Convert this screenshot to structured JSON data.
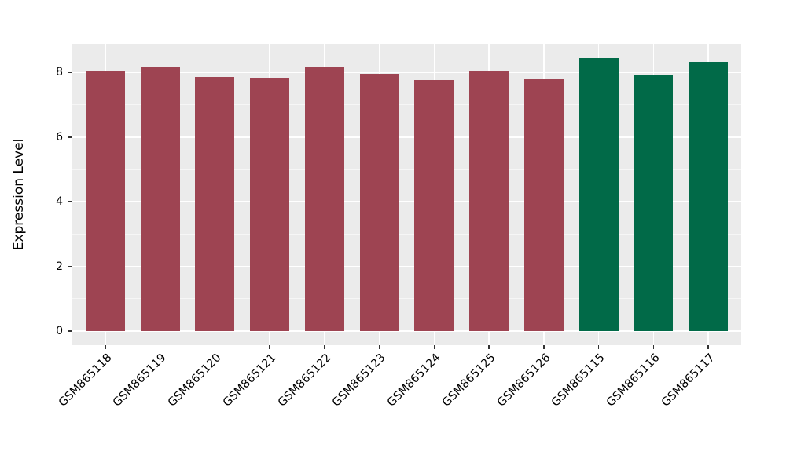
{
  "chart_data": {
    "type": "bar",
    "title": "",
    "xlabel": "",
    "ylabel": "Expression Level",
    "categories": [
      "GSM865118",
      "GSM865119",
      "GSM865120",
      "GSM865121",
      "GSM865122",
      "GSM865123",
      "GSM865124",
      "GSM865125",
      "GSM865126",
      "GSM865115",
      "GSM865116",
      "GSM865117"
    ],
    "values": [
      8.06,
      8.17,
      7.86,
      7.84,
      8.19,
      7.97,
      7.77,
      8.06,
      7.79,
      8.45,
      7.93,
      8.33
    ],
    "bar_colors": [
      "#9E4452",
      "#9E4452",
      "#9E4452",
      "#9E4452",
      "#9E4452",
      "#9E4452",
      "#9E4452",
      "#9E4452",
      "#9E4452",
      "#016A48",
      "#016A48",
      "#016A48"
    ],
    "groups": [
      {
        "color": "#9E4452",
        "samples": [
          "GSM865118",
          "GSM865119",
          "GSM865120",
          "GSM865121",
          "GSM865122",
          "GSM865123",
          "GSM865124",
          "GSM865125",
          "GSM865126"
        ]
      },
      {
        "color": "#016A48",
        "samples": [
          "GSM865115",
          "GSM865116",
          "GSM865117"
        ]
      }
    ],
    "yticks": [
      0,
      2,
      4,
      6,
      8
    ],
    "ytick_labels": [
      "0",
      "2",
      "4",
      "6",
      "8"
    ],
    "yticks_minor": [
      1,
      3,
      5,
      7
    ],
    "ylim": [
      -0.42,
      8.89
    ],
    "grid": "horizontal major+minor and vertical major, white on gray panel",
    "legend": "none"
  },
  "style_colors": {
    "panel_background": "#EBEBEB",
    "grid_major": "#FFFFFF",
    "grid_minor": "rgba(255,255,255,0.55)",
    "tick_mark": "#333333",
    "text": "#000000",
    "figure_background": "#FFFFFF"
  }
}
